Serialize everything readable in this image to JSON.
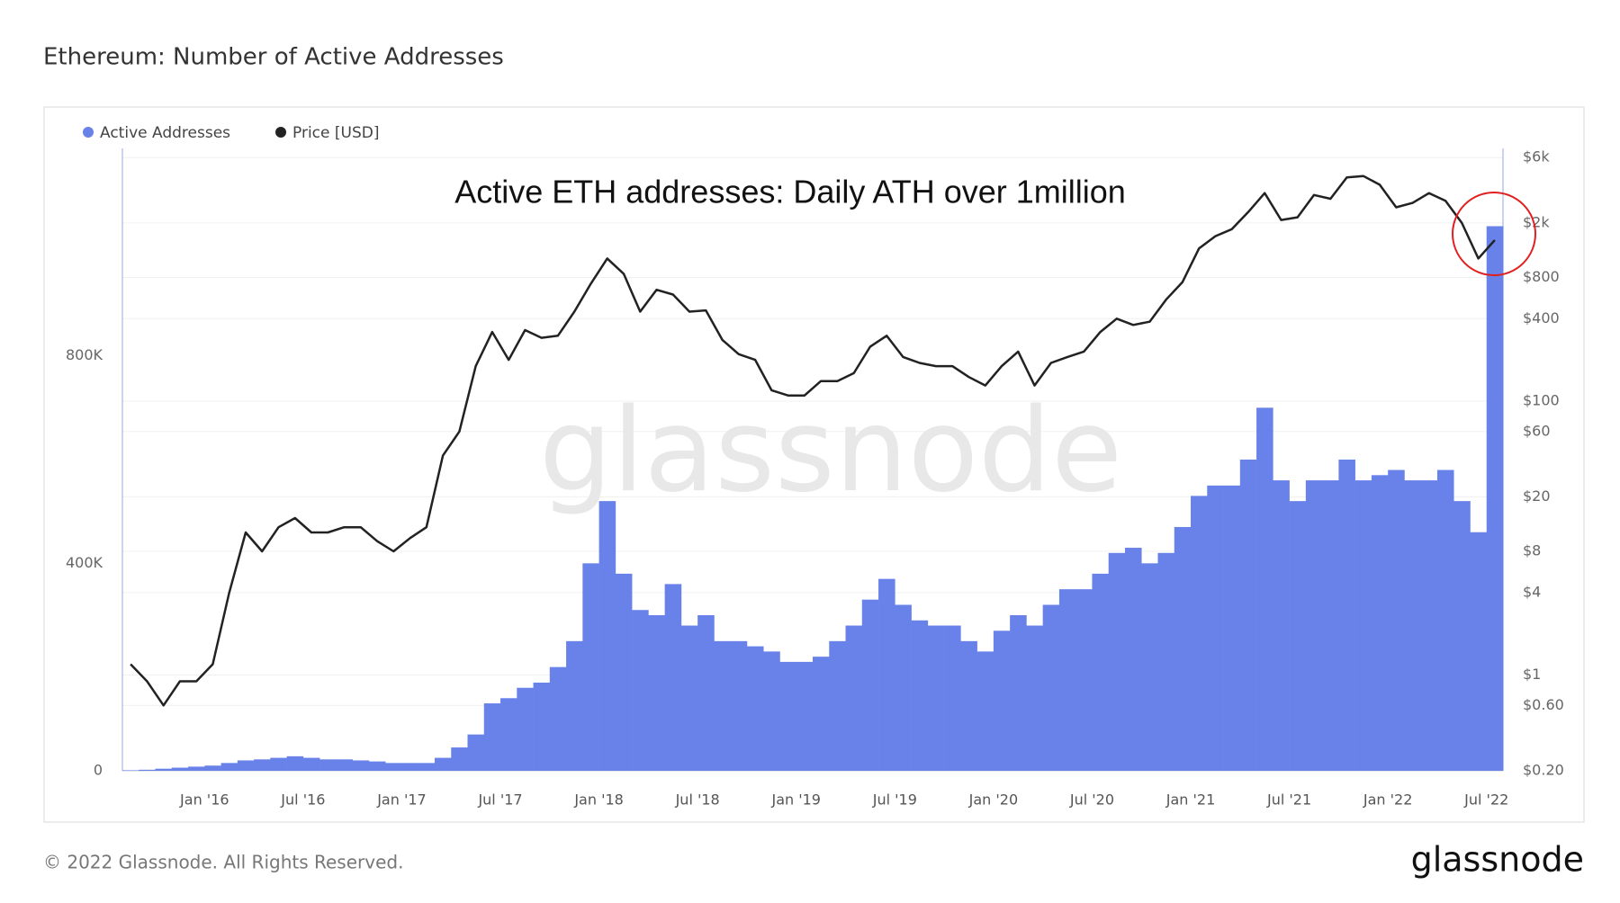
{
  "chart_data": {
    "type": "bar-line",
    "title": "Ethereum: Number of Active Addresses",
    "annotation": "Active ETH addresses: Daily ATH over 1million",
    "watermark": "glassnode",
    "footer": "© 2022 Glassnode. All Rights Reserved.",
    "logo": "glassnode",
    "categories": [
      null,
      null,
      null,
      null,
      null,
      "Jan '16",
      null,
      null,
      null,
      null,
      null,
      "Jul '16",
      null,
      null,
      null,
      null,
      null,
      "Jan '17",
      null,
      null,
      null,
      null,
      null,
      "Jul '17",
      null,
      null,
      null,
      null,
      null,
      "Jan '18",
      null,
      null,
      null,
      null,
      null,
      "Jul '18",
      null,
      null,
      null,
      null,
      null,
      "Jan '19",
      null,
      null,
      null,
      null,
      null,
      "Jul '19",
      null,
      null,
      null,
      null,
      null,
      "Jan '20",
      null,
      null,
      null,
      null,
      null,
      "Jul '20",
      null,
      null,
      null,
      null,
      null,
      "Jan '21",
      null,
      null,
      null,
      null,
      null,
      "Jul '21",
      null,
      null,
      null,
      null,
      null,
      "Jan '22",
      null,
      null,
      null,
      null,
      null,
      "Jul '22"
    ],
    "series": [
      {
        "name": "Active Addresses",
        "color": "#6882ea",
        "axis": "y",
        "values": [
          1000,
          2000,
          4000,
          6000,
          8000,
          10000,
          15000,
          20000,
          22000,
          25000,
          28000,
          25000,
          22000,
          22000,
          20000,
          18000,
          15000,
          15000,
          15000,
          25000,
          45000,
          70000,
          130000,
          140000,
          160000,
          170000,
          200000,
          250000,
          400000,
          520000,
          380000,
          310000,
          300000,
          360000,
          280000,
          300000,
          250000,
          250000,
          240000,
          230000,
          210000,
          210000,
          220000,
          250000,
          280000,
          330000,
          370000,
          320000,
          290000,
          280000,
          280000,
          250000,
          230000,
          270000,
          300000,
          280000,
          320000,
          350000,
          350000,
          380000,
          420000,
          430000,
          400000,
          420000,
          470000,
          530000,
          550000,
          550000,
          600000,
          700000,
          560000,
          520000,
          560000,
          560000,
          600000,
          560000,
          570000,
          580000,
          560000,
          560000,
          580000,
          520000,
          460000,
          1050000
        ]
      },
      {
        "name": "Price [USD]",
        "color": "#222222",
        "axis": "y2",
        "values": [
          1.2,
          0.9,
          0.6,
          0.9,
          0.9,
          1.2,
          4,
          11,
          8,
          12,
          14,
          11,
          11,
          12,
          12,
          9.5,
          8,
          10,
          12,
          40,
          60,
          180,
          320,
          200,
          330,
          290,
          300,
          450,
          720,
          1100,
          850,
          450,
          650,
          600,
          450,
          460,
          280,
          220,
          200,
          120,
          110,
          110,
          140,
          140,
          160,
          250,
          300,
          210,
          190,
          180,
          180,
          150,
          130,
          180,
          230,
          130,
          190,
          210,
          230,
          320,
          400,
          360,
          380,
          550,
          740,
          1300,
          1600,
          1800,
          2400,
          3300,
          2100,
          2200,
          3200,
          3000,
          4300,
          4400,
          3800,
          2600,
          2800,
          3300,
          2900,
          2000,
          1100,
          1500
        ]
      }
    ],
    "ylim": [
      0,
      1200000
    ],
    "yticks": [
      0,
      {
        "value": 400000,
        "label": "400K"
      },
      {
        "value": 800000,
        "label": "800K"
      }
    ],
    "y2lim": [
      0.2,
      7000
    ],
    "y2scale": "log",
    "y2ticks": [
      {
        "value": 0.2,
        "label": "$0.20"
      },
      {
        "value": 0.6,
        "label": "$0.60"
      },
      {
        "value": 1,
        "label": "$1"
      },
      {
        "value": 4,
        "label": "$4"
      },
      {
        "value": 8,
        "label": "$8"
      },
      {
        "value": 20,
        "label": "$20"
      },
      {
        "value": 60,
        "label": "$60"
      },
      {
        "value": 100,
        "label": "$100"
      },
      {
        "value": 400,
        "label": "$400"
      },
      {
        "value": 800,
        "label": "$800"
      },
      {
        "value": 2000,
        "label": "$2k"
      },
      {
        "value": 6000,
        "label": "$6k"
      }
    ],
    "grid": true
  }
}
